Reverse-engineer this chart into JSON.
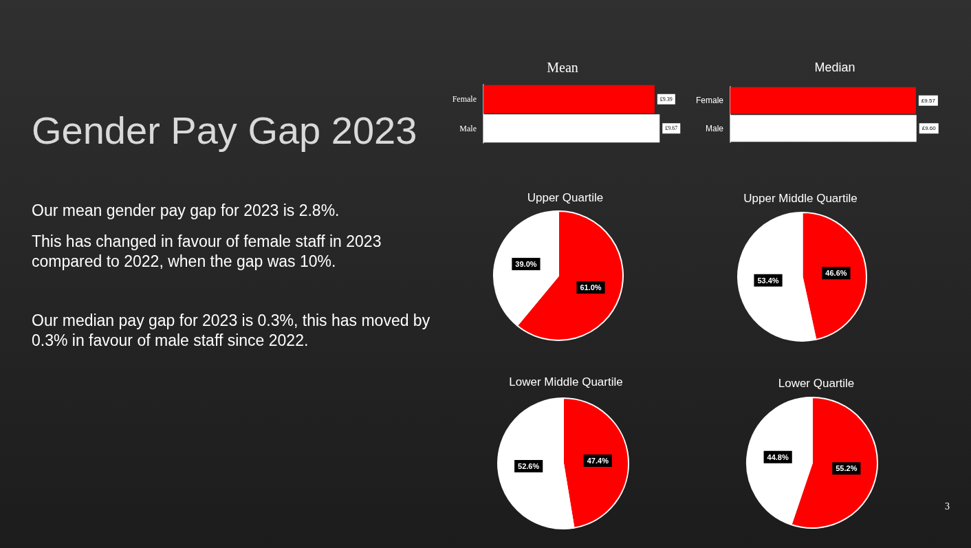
{
  "chart_data": [
    {
      "type": "other",
      "title": "Gender Pay Gap 2023",
      "annotations": [
        "Our mean gender pay gap for 2023 is 2.8%.",
        "This has changed in favour of female staff in 2023 compared to 2022, when the gap was 10%.",
        "Our median pay gap for 2023 is 0.3%, this has moved by 0.3% in favour of male staff since 2022.",
        "3"
      ]
    },
    {
      "type": "bar",
      "orientation": "horizontal",
      "title": "Mean",
      "categories": [
        "Female",
        "Male"
      ],
      "values": [
        9.39,
        9.67
      ],
      "colors": [
        "#ff0000",
        "#ffffff"
      ],
      "value_labels": [
        "£9.39",
        "£9.67"
      ],
      "tick_labels": "y"
    },
    {
      "type": "bar",
      "orientation": "horizontal",
      "title": "Median",
      "categories": [
        "Female",
        "Male"
      ],
      "values": [
        9.57,
        9.6
      ],
      "colors": [
        "#ff0000",
        "#ffffff"
      ],
      "value_labels": [
        "£9.57",
        "£9.60"
      ],
      "tick_labels": "y"
    },
    {
      "type": "pie",
      "title": "Upper Quartile",
      "categories": [
        null,
        null
      ],
      "values": [
        61.0,
        39.0
      ],
      "colors": [
        "#ff0000",
        "#ffffff"
      ],
      "value_labels": [
        "61.0%",
        "39.0%"
      ]
    },
    {
      "type": "pie",
      "title": "Upper Middle Quartile",
      "categories": [
        null,
        null
      ],
      "values": [
        46.6,
        53.4
      ],
      "colors": [
        "#ff0000",
        "#ffffff"
      ],
      "value_labels": [
        "46.6%",
        "53.4%"
      ]
    },
    {
      "type": "pie",
      "title": "Lower Middle Quartile",
      "categories": [
        null,
        null
      ],
      "values": [
        47.4,
        52.6
      ],
      "colors": [
        "#ff0000",
        "#ffffff"
      ],
      "value_labels": [
        "47.4%",
        "52.6%"
      ]
    },
    {
      "type": "pie",
      "title": "Lower Quartile",
      "categories": [
        null,
        null
      ],
      "values": [
        55.2,
        44.8
      ],
      "colors": [
        "#ff0000",
        "#ffffff"
      ],
      "value_labels": [
        "55.2%",
        "44.8%"
      ]
    }
  ]
}
